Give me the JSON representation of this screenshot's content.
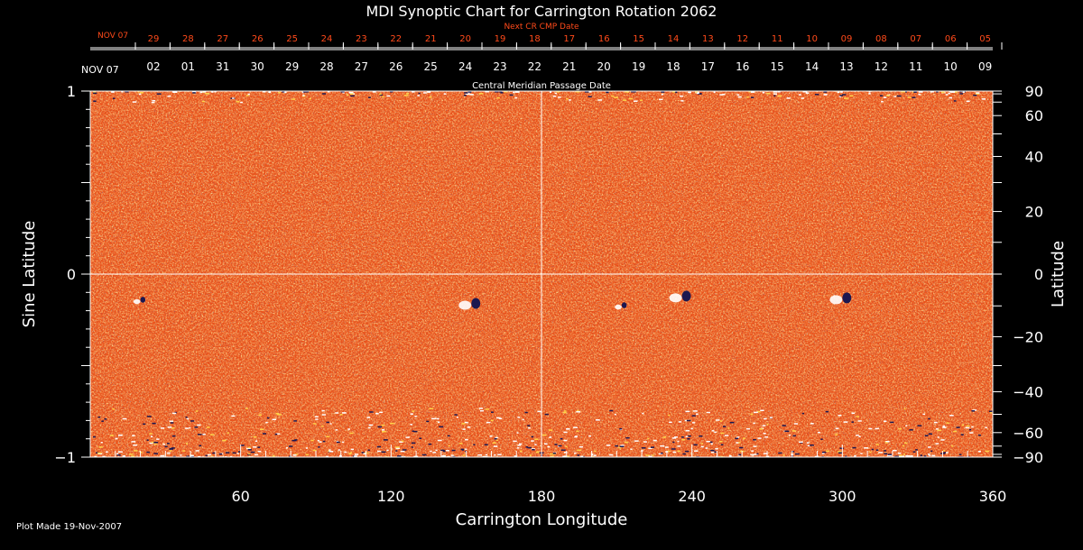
{
  "chart_data": {
    "type": "heatmap",
    "title": "MDI Synoptic Chart for Carrington Rotation 2062",
    "xlabel": "Carrington Longitude",
    "ylabel_left": "Sine Latitude",
    "ylabel_right": "Latitude",
    "xlim": [
      0,
      360
    ],
    "ylim": [
      -1,
      1
    ],
    "x_ticks_labeled": [
      60,
      120,
      180,
      240,
      300,
      360
    ],
    "y_left_ticks_labeled": [
      {
        "value": 1,
        "label": "1"
      },
      {
        "value": 0,
        "label": "0"
      },
      {
        "value": -1,
        "label": "−1"
      }
    ],
    "y_right_ticks_labeled": [
      {
        "deg": 90,
        "label": "90"
      },
      {
        "deg": 60,
        "label": "60"
      },
      {
        "deg": 40,
        "label": "40"
      },
      {
        "deg": 20,
        "label": "20"
      },
      {
        "deg": 0,
        "label": "0"
      },
      {
        "deg": -20,
        "label": "−20"
      },
      {
        "deg": -40,
        "label": "−40"
      },
      {
        "deg": -60,
        "label": "−60"
      },
      {
        "deg": -90,
        "label": "−90"
      }
    ],
    "grid_lines": {
      "longitude": 180,
      "sine_latitude": 0
    },
    "colors": {
      "background": "#000000",
      "field_base": "#e8501a",
      "positive": "#ffffff",
      "negative": "#1c1850",
      "next_cr_axis": "#ff4a1a"
    },
    "active_regions": [
      {
        "lon": 152,
        "sinlat": -0.17,
        "type": "bipole"
      },
      {
        "lon": 236,
        "sinlat": -0.13,
        "type": "bipole"
      },
      {
        "lon": 300,
        "sinlat": -0.14,
        "type": "bipole"
      },
      {
        "lon": 20,
        "sinlat": -0.15,
        "type": "weak"
      },
      {
        "lon": 212,
        "sinlat": -0.18,
        "type": "weak"
      }
    ],
    "cmp_axis": {
      "title": "Central Meridian Passage Date",
      "start_label": "NOV 07",
      "labels": [
        "02",
        "01",
        "31",
        "30",
        "29",
        "28",
        "27",
        "26",
        "25",
        "24",
        "23",
        "22",
        "21",
        "20",
        "19",
        "18",
        "17",
        "16",
        "15",
        "14",
        "13",
        "12",
        "11",
        "10",
        "09"
      ]
    },
    "next_cr_axis": {
      "title": "Next CR CMP Date",
      "start_label": "NOV 07",
      "labels": [
        "29",
        "28",
        "27",
        "26",
        "25",
        "24",
        "23",
        "22",
        "21",
        "20",
        "19",
        "18",
        "17",
        "16",
        "15",
        "14",
        "13",
        "12",
        "11",
        "10",
        "09",
        "08",
        "07",
        "06",
        "05"
      ]
    }
  },
  "footer": {
    "plot_made": "Plot Made 19-Nov-2007"
  }
}
